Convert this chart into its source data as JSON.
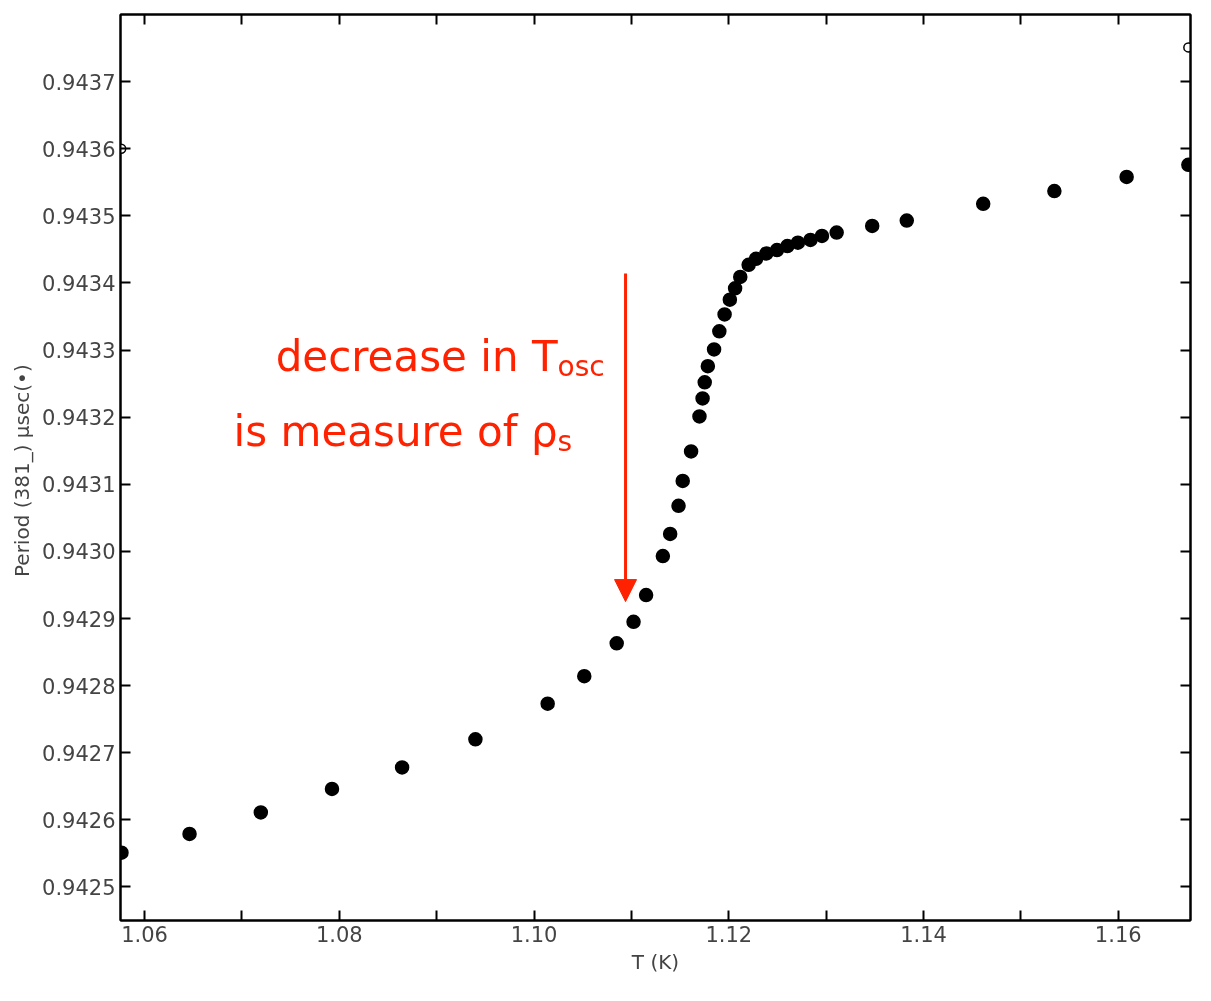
{
  "chart_data": {
    "type": "scatter",
    "xlabel": "T (K)",
    "ylabel": "Period (381_)  μsec(•)",
    "xlim": [
      1.05753,
      1.16742
    ],
    "ylim": [
      0.94245,
      0.9438
    ],
    "xticks": [
      1.06,
      {
        "value": 1.07,
        "label": null
      },
      1.08,
      {
        "value": 1.09,
        "label": null
      },
      {
        "value": 1.1,
        "label": "1.10"
      },
      {
        "value": 1.11,
        "label": null
      },
      1.12,
      {
        "value": 1.13,
        "label": null
      },
      1.14,
      {
        "value": 1.15,
        "label": null
      },
      1.16
    ],
    "yticks": [
      0.9425,
      0.9426,
      0.9427,
      0.9428,
      0.9429,
      {
        "value": 0.943,
        "label": "0.9430"
      },
      0.9431,
      0.9432,
      0.9433,
      0.9434,
      0.9435,
      0.9436,
      0.9437
    ],
    "grid": false,
    "marker": "circle",
    "series": [
      {
        "color": "#000000",
        "x": [
          1.05763,
          1.06462,
          1.07194,
          1.07925,
          1.08645,
          1.09398,
          1.1014,
          1.10516,
          1.10849,
          1.11022,
          1.11151,
          1.11323,
          1.11398,
          1.11484,
          1.11527,
          1.11613,
          1.11699,
          1.11731,
          1.11753,
          1.11785,
          1.11849,
          1.11903,
          1.11957,
          1.12011,
          1.12065,
          1.12118,
          1.12204,
          1.1228,
          1.12387,
          1.12495,
          1.12602,
          1.1271,
          1.12839,
          1.12957,
          1.13108,
          1.13473,
          1.13828,
          1.14613,
          1.15344,
          1.16086,
          1.1672
        ],
        "values": [
          0.942551,
          0.942579,
          0.942611,
          0.942646,
          0.942678,
          0.94272,
          0.942773,
          0.942814,
          0.942863,
          0.942895,
          0.942935,
          0.942993,
          0.943026,
          0.943068,
          0.943105,
          0.943149,
          0.943201,
          0.943228,
          0.943252,
          0.943276,
          0.943301,
          0.943328,
          0.943353,
          0.943375,
          0.943392,
          0.943409,
          0.943427,
          0.943436,
          0.943444,
          0.943449,
          0.943455,
          0.94346,
          0.943464,
          0.94347,
          0.943475,
          0.943485,
          0.943493,
          0.943518,
          0.943537,
          0.943558,
          0.943576
        ]
      },
      {
        "color": "#000000",
        "marker": "open_circle",
        "x": [
          1.0576,
          1.1672
        ],
        "values": [
          0.9436,
          0.943751
        ]
      }
    ],
    "annotations": [
      "decrease in T$_{osc}$\nis measure of ρ$_{s}$"
    ]
  }
}
